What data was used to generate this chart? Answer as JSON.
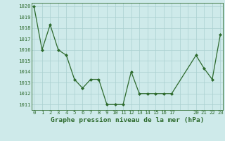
{
  "x": [
    0,
    1,
    2,
    3,
    4,
    5,
    6,
    7,
    8,
    9,
    10,
    11,
    12,
    13,
    14,
    15,
    16,
    17,
    20,
    21,
    22,
    23
  ],
  "y": [
    1020.0,
    1016.0,
    1018.3,
    1016.0,
    1015.5,
    1013.3,
    1012.5,
    1013.3,
    1013.3,
    1011.0,
    1011.0,
    1011.0,
    1014.0,
    1012.0,
    1012.0,
    1012.0,
    1012.0,
    1012.0,
    1015.5,
    1014.3,
    1013.3,
    1017.4
  ],
  "line_color": "#2d6a2d",
  "marker": "D",
  "marker_size": 2.0,
  "bg_color": "#ceeaea",
  "grid_color": "#aad0d0",
  "title": "Graphe pression niveau de la mer (hPa)",
  "ylim_min": 1010.5,
  "ylim_max": 1020.3,
  "yticks": [
    1011,
    1012,
    1013,
    1014,
    1015,
    1016,
    1017,
    1018,
    1019,
    1020
  ],
  "xtick_labels": [
    "0",
    "1",
    "2",
    "3",
    "4",
    "5",
    "6",
    "7",
    "8",
    "9",
    "10",
    "11",
    "12",
    "13",
    "14",
    "15",
    "16",
    "17",
    "",
    "",
    "20",
    "21",
    "22",
    "23"
  ],
  "xtick_positions": [
    0,
    1,
    2,
    3,
    4,
    5,
    6,
    7,
    8,
    9,
    10,
    11,
    12,
    13,
    14,
    15,
    16,
    17,
    18,
    19,
    20,
    21,
    22,
    23
  ],
  "xlim_min": -0.3,
  "xlim_max": 23.3,
  "tick_color": "#2d6a2d",
  "tick_fontsize": 5.2,
  "title_fontsize": 6.8,
  "title_fontweight": "bold",
  "linewidth": 0.9
}
